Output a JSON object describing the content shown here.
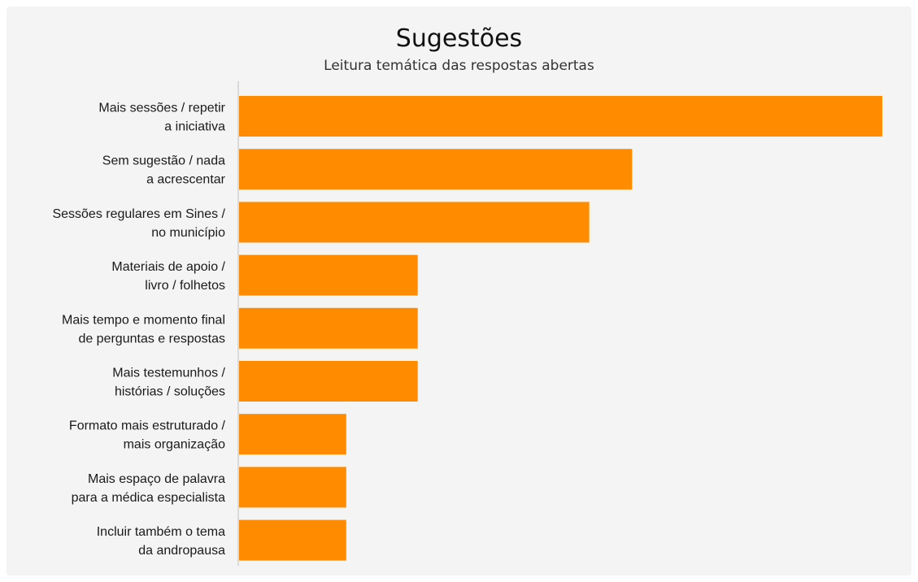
{
  "chart_data": {
    "type": "bar",
    "orientation": "horizontal",
    "title": "Sugestões",
    "subtitle": "Leitura temática das respostas abertas",
    "categories": [
      [
        "Mais sessões / repetir",
        "a iniciativa"
      ],
      [
        "Sem sugestão / nada",
        "a acrescentar"
      ],
      [
        "Sessões regulares em Sines /",
        "no município"
      ],
      [
        "Materiais de apoio /",
        "livro / folhetos"
      ],
      [
        "Mais tempo e momento final",
        "de perguntas e respostas"
      ],
      [
        "Mais testemunhos /",
        "histórias / soluções"
      ],
      [
        "Formato mais estruturado /",
        "mais organização"
      ],
      [
        "Mais espaço de palavra",
        "para a médica especialista"
      ],
      [
        "Incluir também o tema",
        "da andropausa"
      ]
    ],
    "values": [
      9,
      5.5,
      4.9,
      2.5,
      2.5,
      2.5,
      1.5,
      1.5,
      1.5
    ],
    "xlim": [
      0,
      9
    ],
    "grid": false,
    "bar_color": "#ff8c00",
    "axis_color": "#c8c8c8"
  }
}
